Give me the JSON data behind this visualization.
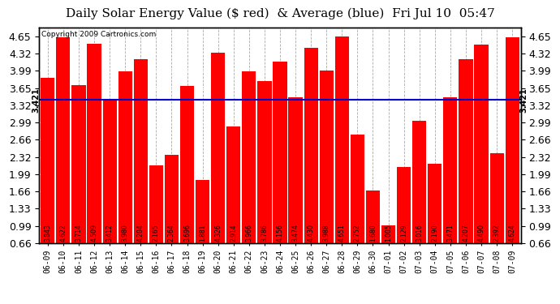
{
  "title": "Daily Solar Energy Value ($ red)  & Average (blue)  Fri Jul 10  05:47",
  "copyright": "Copyright 2009 Cartronics.com",
  "average": 3.421,
  "average_label": "3.421",
  "categories": [
    "06-09",
    "06-10",
    "06-11",
    "06-12",
    "06-13",
    "06-14",
    "06-15",
    "06-16",
    "06-17",
    "06-18",
    "06-19",
    "06-20",
    "06-21",
    "06-22",
    "06-23",
    "06-24",
    "06-25",
    "06-26",
    "06-27",
    "06-28",
    "06-29",
    "06-30",
    "07-01",
    "07-02",
    "07-03",
    "07-04",
    "07-05",
    "07-06",
    "07-07",
    "07-08",
    "07-09"
  ],
  "values": [
    3.843,
    4.622,
    3.714,
    4.509,
    3.412,
    3.98,
    4.204,
    2.165,
    2.364,
    3.696,
    1.881,
    4.326,
    2.914,
    3.966,
    3.786,
    4.156,
    3.474,
    4.43,
    3.988,
    4.651,
    2.752,
    1.68,
    1.005,
    2.129,
    3.016,
    2.19,
    3.471,
    4.207,
    4.49,
    2.392,
    4.624
  ],
  "bar_color": "#ff0000",
  "avg_line_color": "#0000cc",
  "background_color": "#ffffff",
  "plot_bg_color": "#ffffff",
  "grid_color": "#aaaaaa",
  "ylim": [
    0.66,
    4.82
  ],
  "yticks": [
    0.66,
    0.99,
    1.33,
    1.66,
    1.99,
    2.32,
    2.66,
    2.99,
    3.32,
    3.65,
    3.99,
    4.32,
    4.65
  ],
  "title_fontsize": 11,
  "tick_fontsize": 9,
  "bar_label_fontsize": 5.5,
  "copyright_fontsize": 6.5
}
